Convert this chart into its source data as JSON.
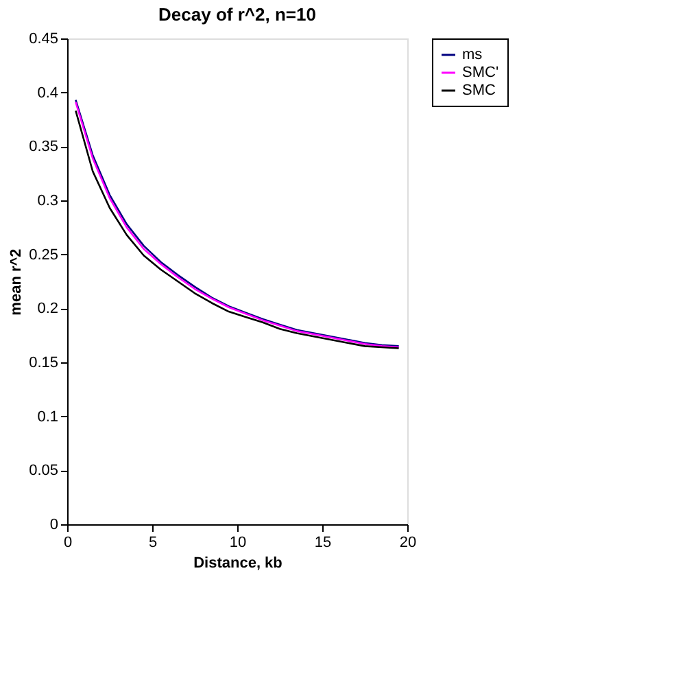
{
  "chart_data": {
    "type": "line",
    "title": "Decay of r^2, n=10",
    "xlabel": "Distance, kb",
    "ylabel": "mean r^2",
    "x": [
      0.5,
      1.5,
      2.5,
      3.5,
      4.5,
      5.5,
      6.5,
      7.5,
      8.5,
      9.5,
      10.5,
      11.5,
      12.5,
      13.5,
      14.5,
      15.5,
      16.5,
      17.5,
      18.5,
      19.5
    ],
    "series": [
      {
        "name": "ms",
        "color": "#000080",
        "values": [
          0.393,
          0.342,
          0.305,
          0.278,
          0.258,
          0.243,
          0.231,
          0.22,
          0.21,
          0.202,
          0.196,
          0.19,
          0.185,
          0.18,
          0.177,
          0.174,
          0.171,
          0.168,
          0.166,
          0.165
        ]
      },
      {
        "name": "SMC'",
        "color": "#ff00ff",
        "values": [
          0.391,
          0.339,
          0.302,
          0.275,
          0.255,
          0.241,
          0.229,
          0.218,
          0.209,
          0.201,
          0.195,
          0.189,
          0.184,
          0.179,
          0.176,
          0.173,
          0.17,
          0.167,
          0.165,
          0.164
        ]
      },
      {
        "name": "SMC",
        "color": "#000000",
        "values": [
          0.383,
          0.327,
          0.293,
          0.268,
          0.249,
          0.236,
          0.225,
          0.214,
          0.205,
          0.197,
          0.192,
          0.187,
          0.181,
          0.177,
          0.174,
          0.171,
          0.168,
          0.165,
          0.164,
          0.163
        ]
      }
    ],
    "xlim": [
      0,
      20
    ],
    "xticks": [
      0,
      5,
      10,
      15,
      20
    ],
    "ylim": [
      0,
      0.45
    ],
    "yticks": [
      0,
      0.05,
      0.1,
      0.15,
      0.2,
      0.25,
      0.3,
      0.35,
      0.4,
      0.45
    ],
    "grid": false,
    "legend": "right",
    "marker": "none",
    "line_style": "solid"
  }
}
